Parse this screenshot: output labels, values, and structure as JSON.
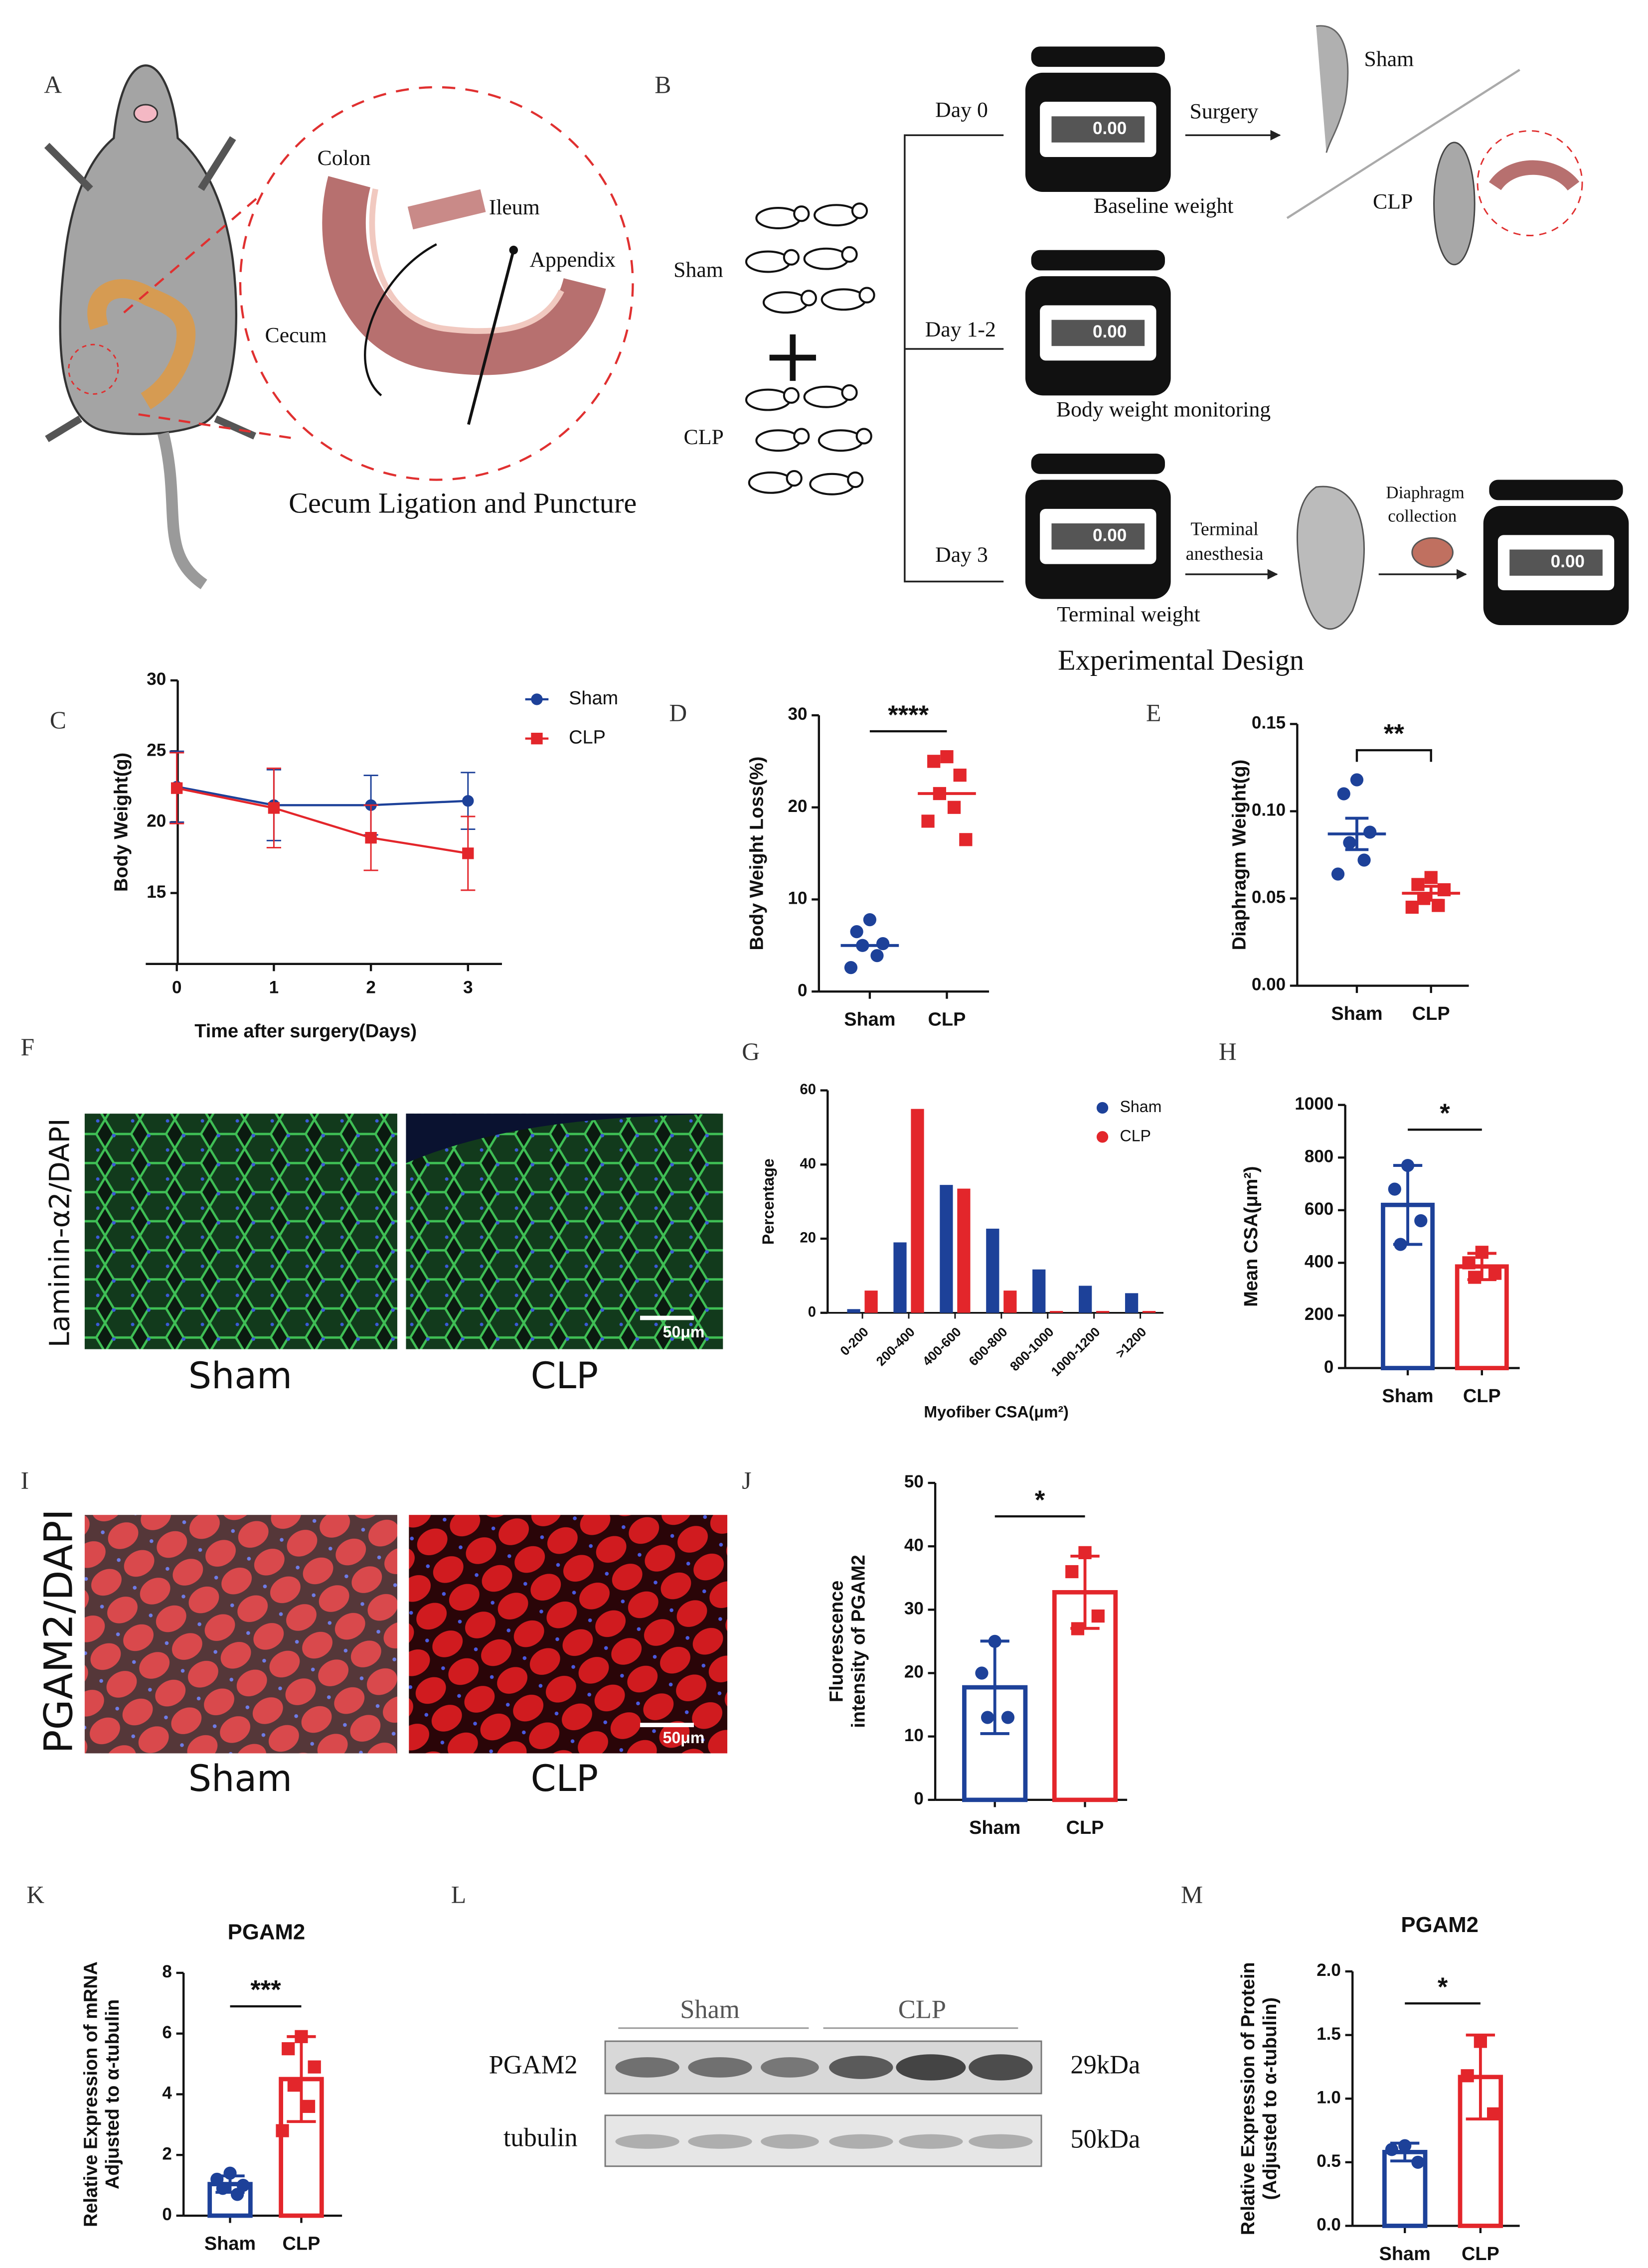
{
  "panel_labels": [
    "A",
    "B",
    "C",
    "D",
    "E",
    "F",
    "G",
    "H",
    "I",
    "J",
    "K",
    "L",
    "M"
  ],
  "diagram_a": {
    "colon": "Colon",
    "ileum": "Ileum",
    "appendix": "Appendix",
    "cecum": "Cecum",
    "caption": "Cecum Ligation and Puncture"
  },
  "diagram_b": {
    "group_sham": "Sham",
    "group_clp": "CLP",
    "day0": "Day 0",
    "day12": "Day 1-2",
    "day3": "Day 3",
    "baseline": "Baseline weight",
    "monitoring": "Body weight monitoring",
    "terminal": "Terminal weight",
    "surgery": "Surgery",
    "result_sham": "Sham",
    "result_clp": "CLP",
    "anesthesia": [
      "Terminal",
      "anesthesia"
    ],
    "collection": [
      "Diaphragm",
      "collection"
    ],
    "scale_readout": "0.00",
    "caption": "Experimental  Design"
  },
  "images_f": {
    "stain": "Laminin-α2/DAPI",
    "groups": [
      "Sham",
      "CLP"
    ],
    "scale_bar": "50μm"
  },
  "images_i": {
    "stain": "PGAM2/DAPI",
    "groups": [
      "Sham",
      "CLP"
    ],
    "scale_bar": "50μm"
  },
  "blot_l": {
    "groups": [
      "Sham",
      "CLP"
    ],
    "rows": [
      {
        "protein": "PGAM2",
        "size": "29kDa"
      },
      {
        "protein": "tubulin",
        "size": "50kDa"
      }
    ]
  },
  "chart_data": [
    {
      "type": "line",
      "x_label": "Time after surgery(Days)",
      "y_label": [
        "Body Weight(g)"
      ],
      "x": [
        0,
        1,
        2,
        3
      ],
      "xlim": [
        -0.32,
        3.35
      ],
      "xticks": [
        0,
        1,
        2,
        3
      ],
      "ylim": [
        10,
        30
      ],
      "yticks": [
        15,
        20,
        25,
        30
      ],
      "legend": "right",
      "series": [
        {
          "name": "Sham",
          "color": "#1d4199",
          "marker": "circle",
          "values": [
            22.5,
            21.2,
            21.2,
            21.5
          ],
          "errors": [
            2.5,
            2.5,
            2.1,
            2.0
          ]
        },
        {
          "name": "CLP",
          "color": "#e3262b",
          "marker": "square",
          "values": [
            22.4,
            21.0,
            18.9,
            17.8
          ],
          "errors": [
            2.5,
            2.8,
            2.3,
            2.6
          ]
        }
      ]
    },
    {
      "type": "dot",
      "y_label": [
        "Body Weight Loss(%)"
      ],
      "categories": [
        "Sham",
        "CLP"
      ],
      "ylim": [
        0,
        30
      ],
      "yticks": [
        0,
        10,
        20,
        30
      ],
      "significance": "****",
      "series": [
        {
          "color": "#1d4199",
          "marker": "circle",
          "points": [
            7.8,
            6.5,
            5.2,
            5.0,
            3.9,
            2.6
          ],
          "mean": 5.0
        },
        {
          "color": "#e3262b",
          "marker": "square",
          "points": [
            25.5,
            25.0,
            23.5,
            21.5,
            20.0,
            18.5,
            16.5
          ],
          "mean": 21.5
        }
      ]
    },
    {
      "type": "dot",
      "y_label": [
        "Diaphragm Weight(g)"
      ],
      "categories": [
        "Sham",
        "CLP"
      ],
      "ylim": [
        0,
        0.15
      ],
      "yticks": [
        {
          "value": 0,
          "label": "0.00"
        },
        {
          "value": 0.05,
          "label": "0.05"
        },
        {
          "value": 0.1,
          "label": "0.10"
        },
        {
          "value": 0.15,
          "label": "0.15"
        }
      ],
      "significance": "**",
      "series": [
        {
          "color": "#1d4199",
          "marker": "circle",
          "points": [
            0.118,
            0.11,
            0.088,
            0.082,
            0.072,
            0.064
          ],
          "mean": 0.087,
          "error": 0.009
        },
        {
          "color": "#e3262b",
          "marker": "square",
          "points": [
            0.062,
            0.058,
            0.055,
            0.05,
            0.046,
            0.045
          ],
          "mean": 0.053,
          "error": 0.004
        }
      ]
    },
    {
      "type": "bar",
      "y_label": [
        "Percentage"
      ],
      "x_label": "Myofiber CSA(μm²)",
      "categories": [
        "0-200",
        "200-400",
        "400-600",
        "600-800",
        "800-1000",
        "1000-1200",
        ">1200"
      ],
      "ylim": [
        0,
        60
      ],
      "yticks": [
        0,
        20,
        40,
        60
      ],
      "legend": "upper right",
      "series": [
        {
          "name": "Sham",
          "color": "#1d4199",
          "values": [
            1,
            19,
            34.5,
            22.7,
            11.7,
            7.3,
            5.3
          ]
        },
        {
          "name": "CLP",
          "color": "#e3262b",
          "values": [
            6,
            55,
            33.5,
            6,
            0.5,
            0.5,
            0.5
          ]
        }
      ]
    },
    {
      "type": "bar",
      "y_label": [
        "Mean CSA(μm²)"
      ],
      "categories": [
        "Sham",
        "CLP"
      ],
      "ylim": [
        0,
        1000
      ],
      "yticks": [
        0,
        200,
        400,
        600,
        800,
        1000
      ],
      "significance": "*",
      "series": [
        {
          "color": "#1d4199",
          "marker": "circle",
          "points": [
            770,
            680,
            560,
            470
          ],
          "mean": 620,
          "error": 150
        },
        {
          "color": "#e3262b",
          "marker": "square",
          "points": [
            440,
            400,
            360,
            345
          ],
          "mean": 386,
          "error": 50
        }
      ]
    },
    {
      "type": "bar",
      "y_label": [
        "Fluorescence",
        "intensity of PGAM2"
      ],
      "categories": [
        "Sham",
        "CLP"
      ],
      "ylim": [
        0,
        50
      ],
      "yticks": [
        0,
        10,
        20,
        30,
        40,
        50
      ],
      "significance": "*",
      "series": [
        {
          "color": "#1d4199",
          "marker": "circle",
          "points": [
            25,
            20,
            13,
            13
          ],
          "mean": 17.75,
          "error": 7.3
        },
        {
          "color": "#e3262b",
          "marker": "square",
          "points": [
            39,
            36,
            29,
            27
          ],
          "mean": 32.75,
          "error": 5.7
        }
      ]
    },
    {
      "type": "bar",
      "title": "PGAM2",
      "y_label": [
        "Relative Expression of mRNA",
        "Adjusted to α-tubulin"
      ],
      "categories": [
        "Sham",
        "CLP"
      ],
      "ylim": [
        0,
        8
      ],
      "yticks": [
        0,
        2,
        4,
        6,
        8
      ],
      "significance": "***",
      "series": [
        {
          "color": "#1d4199",
          "marker": "circle",
          "points": [
            1.4,
            1.2,
            1.0,
            0.9,
            0.7
          ],
          "mean": 1.04,
          "error": 0.27
        },
        {
          "color": "#e3262b",
          "marker": "square",
          "points": [
            5.9,
            5.5,
            4.9,
            4.3,
            3.6,
            2.8
          ],
          "mean": 4.5,
          "error": 1.4
        }
      ]
    },
    {
      "type": "bar",
      "title": "PGAM2",
      "y_label": [
        "Relative Expression of Protein",
        "(Adjusted to α-tubulin)"
      ],
      "categories": [
        "Sham",
        "CLP"
      ],
      "ylim": [
        0,
        2
      ],
      "yticks": [
        {
          "value": 0,
          "label": "0.0"
        },
        {
          "value": 0.5,
          "label": "0.5"
        },
        {
          "value": 1,
          "label": "1.0"
        },
        {
          "value": 1.5,
          "label": "1.5"
        },
        {
          "value": 2,
          "label": "2.0"
        }
      ],
      "significance": "*",
      "series": [
        {
          "color": "#1d4199",
          "marker": "circle",
          "points": [
            0.63,
            0.6,
            0.5
          ],
          "mean": 0.58,
          "error": 0.07
        },
        {
          "color": "#e3262b",
          "marker": "square",
          "points": [
            1.45,
            1.18,
            0.88
          ],
          "mean": 1.17,
          "error": 0.33
        }
      ]
    }
  ]
}
